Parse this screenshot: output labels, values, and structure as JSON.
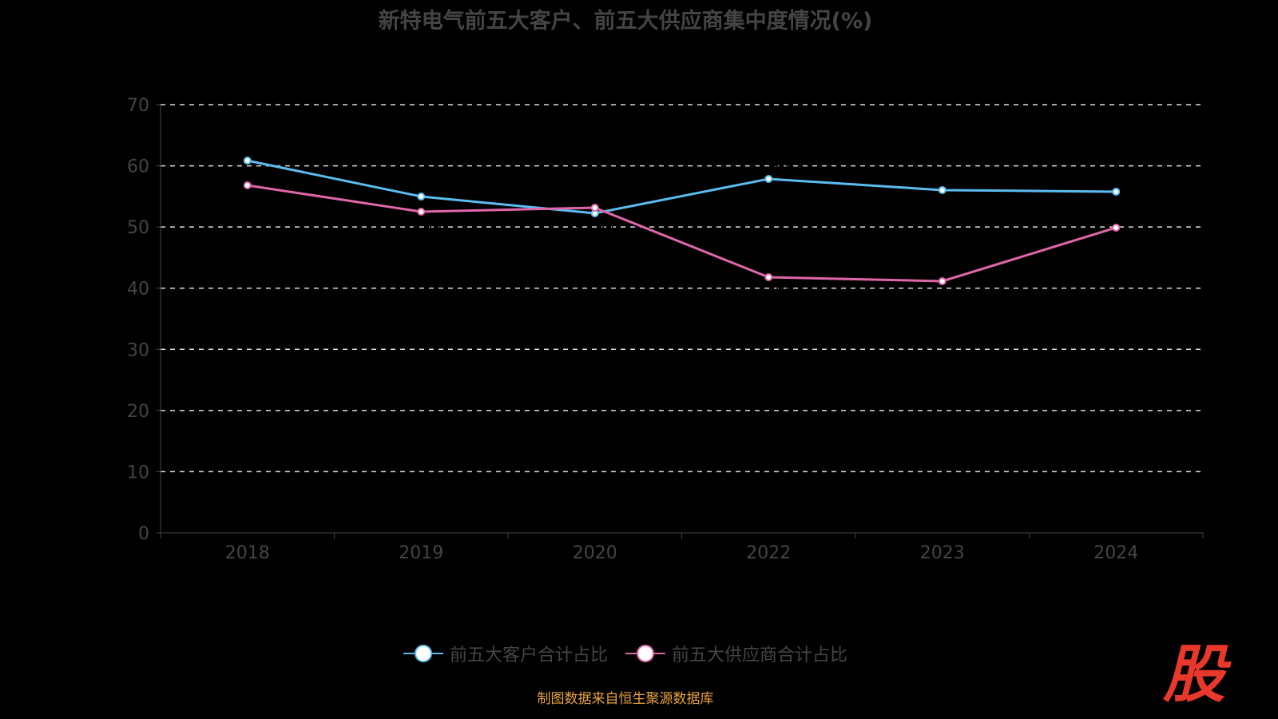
{
  "chart_data": {
    "type": "line",
    "title": "新特电气前五大客户、前五大供应商集中度情况(%)",
    "categories": [
      "2018",
      "2019",
      "2020",
      "2022",
      "2023",
      "2024"
    ],
    "ylim": [
      0,
      70
    ],
    "yticks": [
      0,
      10,
      20,
      30,
      40,
      50,
      60,
      70
    ],
    "grid": true,
    "legend_position": "bottom",
    "series": [
      {
        "name": "前五大客户合计占比",
        "color": "#5bbcf0",
        "values": [
          60.86,
          54.98,
          52.24,
          57.86,
          56.03,
          55.77
        ]
      },
      {
        "name": "前五大供应商合计占比",
        "color": "#e066a8",
        "values": [
          56.81,
          52.5,
          53.15,
          41.79,
          41.14,
          49.89
        ]
      }
    ]
  },
  "source": "制图数据来自恒生聚源数据库",
  "logo_text": "股"
}
